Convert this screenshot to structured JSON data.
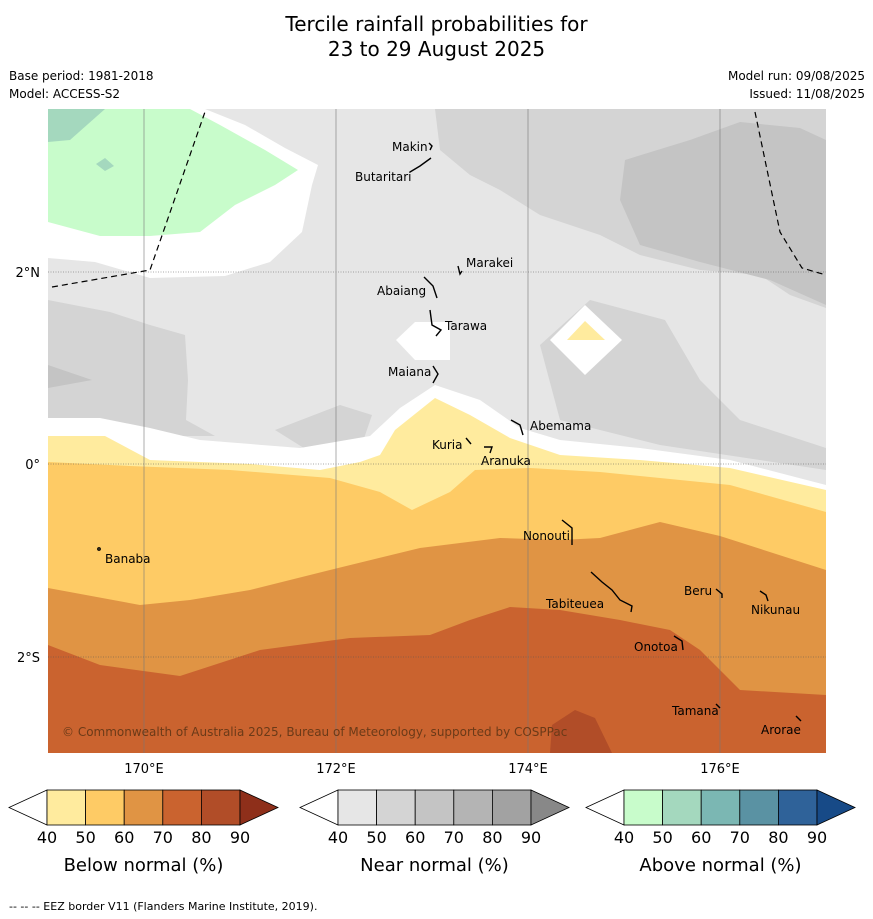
{
  "header": {
    "title_line1": "Tercile rainfall probabilities for",
    "title_line2": "23 to 29 August 2025",
    "base_period": "Base period: 1981-2018",
    "model": "Model: ACCESS-S2",
    "model_run": "Model run: 09/08/2025",
    "issued": "Issued: 11/08/2025"
  },
  "map": {
    "lat_labels": [
      "2°N",
      "0°",
      "2°S"
    ],
    "lon_labels": [
      "170°E",
      "172°E",
      "174°E",
      "176°E"
    ],
    "copyright": "© Commonwealth of Australia 2025, Bureau of Meteorology, supported by COSPPac",
    "places": [
      "Makin",
      "Butaritari",
      "Marakei",
      "Abaiang",
      "Tarawa",
      "Maiana",
      "Abemama",
      "Kuria",
      "Aranuka",
      "Nonouti",
      "Banaba",
      "Tabiteuea",
      "Beru",
      "Nikunau",
      "Onotoa",
      "Tamana",
      "Arorae"
    ]
  },
  "colorbars": [
    {
      "label": "Below normal (%)",
      "ticks": [
        "40",
        "50",
        "60",
        "70",
        "80",
        "90"
      ],
      "colors": [
        "#ffeb9e",
        "#fecb65",
        "#e09444",
        "#ca632f",
        "#b14d28",
        "#8e2f1a"
      ]
    },
    {
      "label": "Near normal (%)",
      "ticks": [
        "40",
        "50",
        "60",
        "70",
        "80",
        "90"
      ],
      "colors": [
        "#e6e6e6",
        "#d4d4d4",
        "#c4c4c4",
        "#b4b4b4",
        "#a2a2a2",
        "#888888"
      ]
    },
    {
      "label": "Above normal (%)",
      "ticks": [
        "40",
        "50",
        "60",
        "70",
        "80",
        "90"
      ],
      "colors": [
        "#c8fccb",
        "#a4d8be",
        "#7bb7b3",
        "#5a92a3",
        "#2f6299",
        "#174a87"
      ]
    }
  ],
  "footer": "--  --  -- EEZ border V11 (Flanders Marine Institute, 2019)."
}
